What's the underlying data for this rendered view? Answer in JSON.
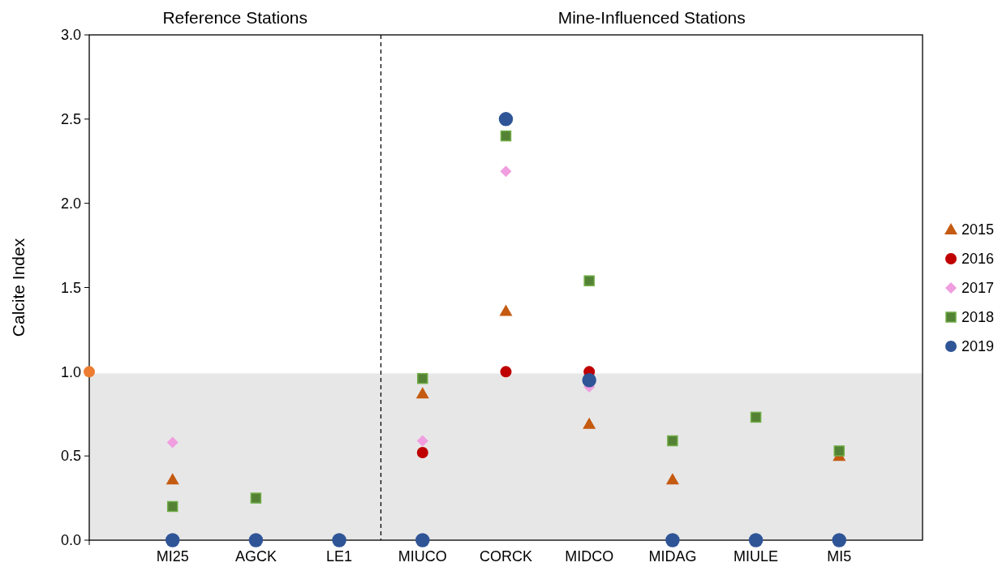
{
  "chart_data": {
    "type": "scatter",
    "ylabel": "Calcite Index",
    "categories": [
      null,
      "MI25",
      "AGCK",
      "LE1",
      "MIUCO",
      "CORCK",
      "MIDCO",
      "MIDAG",
      "MIULE",
      "MI5",
      null
    ],
    "ylim": [
      0,
      3
    ],
    "yticks": [
      {
        "value": 0,
        "label": "0.0"
      },
      {
        "value": 0.5,
        "label": "0.5"
      },
      {
        "value": 1,
        "label": "1.0"
      },
      {
        "value": 1.5,
        "label": "1.5"
      },
      {
        "value": 2,
        "label": "2.0"
      },
      {
        "value": 2.5,
        "label": "2.5"
      },
      {
        "value": 3,
        "label": "3.0"
      }
    ],
    "grid": false,
    "legend": "right",
    "annotations": [
      "Reference Stations",
      "Mine-Influenced Stations"
    ],
    "bands": [
      {
        "axis": "y",
        "from": 0,
        "to": 0.99,
        "color": "#e7e7e7"
      }
    ],
    "series": [
      {
        "color": "#ed7d31",
        "marker": "circle",
        "values": [
          1,
          null,
          null,
          null,
          null,
          null,
          null,
          null,
          null,
          null,
          null
        ]
      },
      {
        "name": "2015",
        "color": "#c55a11",
        "marker": "triangle",
        "values": [
          null,
          0.36,
          null,
          null,
          0.87,
          1.36,
          0.69,
          0.36,
          null,
          0.5,
          null
        ]
      },
      {
        "name": "2016",
        "color": "#c00000",
        "marker": "circle",
        "values": [
          null,
          null,
          null,
          null,
          0.52,
          1.0,
          1.0,
          null,
          null,
          null,
          null
        ]
      },
      {
        "name": "2017",
        "color": "#f09ee0",
        "marker": "diamond",
        "values": [
          null,
          0.58,
          null,
          null,
          0.59,
          2.19,
          0.91,
          null,
          null,
          null,
          null
        ]
      },
      {
        "name": "2018",
        "color": "#548235",
        "marker": "square",
        "values": [
          null,
          0.2,
          0.25,
          null,
          0.96,
          2.4,
          1.54,
          0.59,
          0.73,
          0.53,
          null
        ]
      },
      {
        "name": "2019",
        "color": "#2f5597",
        "marker": "circle",
        "values": [
          null,
          0,
          0,
          0,
          0,
          2.5,
          0.95,
          0,
          0,
          0,
          null
        ]
      }
    ]
  }
}
